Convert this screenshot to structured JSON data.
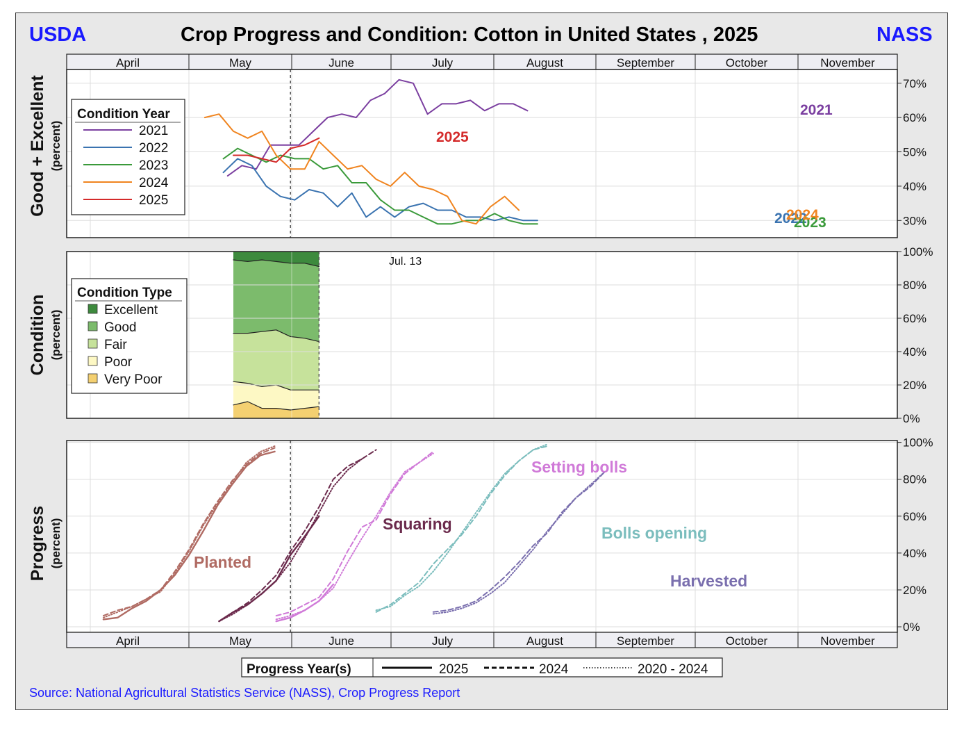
{
  "header": {
    "left_logo": "USDA",
    "title": "Crop Progress and Condition: Cotton in United States , 2025",
    "right_logo": "NASS"
  },
  "source": "Source: National Agricultural Statistics Service (NASS), Crop Progress Report",
  "months": [
    "April",
    "May",
    "June",
    "July",
    "August",
    "September",
    "October",
    "November"
  ],
  "colors": {
    "brand": "#1a1aff",
    "y2021": "#7b3fa0",
    "y2022": "#3a73b0",
    "y2023": "#3a9a3a",
    "y2024": "#f0841f",
    "y2025": "#d42a2a",
    "excellent": "#3d8a3d",
    "good": "#7cbb6c",
    "fair": "#c6e29b",
    "poor": "#fdf8c4",
    "very_poor": "#f4d071",
    "planted": "#b06b63",
    "squaring": "#6b2a4c",
    "setting_bolls": "#d07ad8",
    "bolls_opening": "#7bbdbd",
    "harvested": "#7a6fae"
  },
  "chart_data": [
    {
      "type": "line",
      "title": "Good + Excellent",
      "ylabel": "Good + Excellent",
      "ylabel_sub": "(percent)",
      "ylim": [
        25,
        74
      ],
      "yticks": [
        "30%",
        "40%",
        "50%",
        "60%",
        "70%"
      ],
      "ytick_values": [
        30,
        40,
        50,
        60,
        70
      ],
      "x_unit": "weeks since April 1",
      "current_week_marker": 14.7,
      "legend_title": "Condition Year",
      "series": [
        {
          "name": "2021",
          "color_key": "y2021",
          "end_label": "2021",
          "x": [
            10.3,
            11.3,
            12.3,
            13.3,
            14.3,
            15.3,
            16.3,
            17.3,
            18.3,
            19.3,
            20.3,
            21.3,
            22.3,
            23.3,
            24.3,
            25.3,
            26.3,
            27.3,
            28.3,
            29.3,
            30.3,
            31.3
          ],
          "values": [
            43,
            46,
            45,
            52,
            52,
            52,
            56,
            60,
            61,
            60,
            65,
            67,
            71,
            70,
            61,
            64,
            64,
            65,
            62,
            64,
            64,
            62
          ]
        },
        {
          "name": "2022",
          "color_key": "y2022",
          "end_label": "2022",
          "x": [
            10.0,
            11.0,
            12.0,
            13.0,
            14.0,
            15.0,
            16.0,
            17.0,
            18.0,
            19.0,
            20.0,
            21.0,
            22.0,
            23.0,
            24.0,
            25.0,
            26.0,
            27.0,
            28.0,
            29.0,
            30.0,
            31.0,
            32.0
          ],
          "values": [
            44,
            48,
            46,
            40,
            37,
            36,
            39,
            38,
            34,
            38,
            31,
            34,
            31,
            34,
            35,
            33,
            33,
            31,
            31,
            30,
            31,
            30,
            30
          ]
        },
        {
          "name": "2023",
          "color_key": "y2023",
          "end_label": "2023",
          "x": [
            10.0,
            11.0,
            12.0,
            13.0,
            14.0,
            15.0,
            16.0,
            17.0,
            18.0,
            19.0,
            20.0,
            21.0,
            22.0,
            23.0,
            24.0,
            25.0,
            26.0,
            27.0,
            28.0,
            29.0,
            30.0,
            31.0,
            32.0
          ],
          "values": [
            48,
            51,
            49,
            47,
            49,
            48,
            48,
            45,
            46,
            41,
            41,
            36,
            33,
            33,
            31,
            29,
            29,
            30,
            30,
            32,
            30,
            29,
            29
          ]
        },
        {
          "name": "2024",
          "color_key": "y2024",
          "end_label": "2024",
          "x": [
            8.7,
            9.7,
            10.7,
            11.7,
            12.7,
            13.7,
            14.7,
            15.7,
            16.7,
            17.7,
            18.7,
            19.7,
            20.7,
            21.7,
            22.7,
            23.7,
            24.7,
            25.7,
            26.7,
            27.7,
            28.7,
            29.7,
            30.7,
            31.7
          ],
          "values": [
            60,
            61,
            56,
            54,
            56,
            49,
            45,
            45,
            53,
            49,
            45,
            46,
            42,
            40,
            44,
            40,
            39,
            37,
            30,
            29,
            34,
            37,
            33,
            null
          ]
        },
        {
          "name": "2025",
          "color_key": "y2025",
          "end_label": "2025",
          "x": [
            10.7,
            11.7,
            12.7,
            13.7,
            14.7,
            15.7,
            16.7,
            17.7
          ],
          "values": [
            49,
            49,
            48,
            47,
            51,
            52,
            54,
            null
          ]
        }
      ]
    },
    {
      "type": "area",
      "title": "Condition",
      "ylabel": "Condition",
      "ylabel_sub": "(percent)",
      "ylim": [
        0,
        100
      ],
      "yticks": [
        "0%",
        "20%",
        "40%",
        "60%",
        "80%",
        "100%"
      ],
      "ytick_values": [
        0,
        20,
        40,
        60,
        80,
        100
      ],
      "annotation": "Jul. 13",
      "legend_title": "Condition Type",
      "categories": [
        "Excellent",
        "Good",
        "Fair",
        "Poor",
        "Very Poor"
      ],
      "x": [
        10.7,
        11.7,
        12.7,
        13.7,
        14.7,
        15.7,
        16.7
      ],
      "stacks": {
        "very_poor_top": [
          8,
          10,
          6,
          6,
          5,
          6,
          7
        ],
        "poor_top": [
          22,
          21,
          19,
          20,
          17,
          17,
          17
        ],
        "fair_top": [
          51,
          51,
          52,
          53,
          49,
          48,
          46
        ],
        "good_top": [
          95,
          94,
          95,
          94,
          93,
          93,
          91
        ]
      }
    },
    {
      "type": "line",
      "title": "Progress",
      "ylabel": "Progress",
      "ylabel_sub": "(percent)",
      "ylim": [
        -3,
        101
      ],
      "yticks": [
        "0%",
        "20%",
        "40%",
        "60%",
        "80%",
        "100%"
      ],
      "ytick_values": [
        0,
        20,
        40,
        60,
        80,
        100
      ],
      "legend_title": "Progress Year(s)",
      "legend_items": [
        "2025",
        "2024",
        "2020 - 2024"
      ],
      "stages": [
        {
          "name": "Planted",
          "color_key": "planted",
          "s2025": {
            "x": [
              1.6,
              2.6,
              3.6,
              4.6,
              5.6,
              6.6,
              7.6,
              8.6,
              9.6,
              10.6,
              11.6,
              12.6,
              13.6,
              14.6
            ],
            "y": [
              4,
              5,
              10,
              14,
              20,
              28,
              39,
              52,
              66,
              77,
              87,
              93,
              95,
              null
            ]
          },
          "s2024": {
            "x": [
              1.6,
              2.6,
              3.6,
              4.6,
              5.6,
              6.6,
              7.6,
              8.6,
              9.6,
              10.6,
              11.6,
              12.6,
              13.6
            ],
            "y": [
              6,
              9,
              11,
              15,
              20,
              30,
              42,
              56,
              68,
              79,
              88,
              94,
              97
            ]
          },
          "savg": {
            "x": [
              1.6,
              2.6,
              3.6,
              4.6,
              5.6,
              6.6,
              7.6,
              8.6,
              9.6,
              10.6,
              11.6,
              12.6,
              13.6
            ],
            "y": [
              5,
              8,
              11,
              15,
              19,
              29,
              41,
              55,
              67,
              78,
              89,
              95,
              98
            ]
          }
        },
        {
          "name": "Squaring",
          "color_key": "squaring",
          "s2025": {
            "x": [
              9.7,
              10.7,
              11.7,
              12.7,
              13.7,
              14.7,
              15.7,
              16.7
            ],
            "y": [
              3,
              8,
              12,
              18,
              25,
              39,
              49,
              60
            ]
          },
          "s2024": {
            "x": [
              9.7,
              10.7,
              11.7,
              12.7,
              13.7,
              14.7,
              15.7,
              16.7,
              17.7,
              18.7,
              19.7,
              20.7
            ],
            "y": [
              3,
              8,
              13,
              20,
              28,
              41,
              52,
              65,
              80,
              87,
              91,
              96
            ]
          },
          "savg": {
            "x": [
              9.7,
              10.7,
              11.7,
              12.7,
              13.7,
              14.7,
              15.7,
              16.7,
              17.7,
              18.7,
              19.7
            ],
            "y": [
              3,
              7,
              12,
              18,
              25,
              35,
              48,
              62,
              76,
              85,
              91
            ]
          }
        },
        {
          "name": "Setting bolls",
          "color_key": "setting_bolls",
          "s2025": {
            "x": [
              13.7,
              14.7,
              15.7,
              16.7,
              17.7
            ],
            "y": [
              3,
              5,
              9,
              14,
              23
            ]
          },
          "s2024": {
            "x": [
              13.7,
              14.7,
              15.7,
              16.7,
              17.7,
              18.7,
              19.7,
              20.7,
              21.7,
              22.7,
              23.7,
              24.7
            ],
            "y": [
              6,
              8,
              12,
              16,
              26,
              41,
              54,
              58,
              72,
              83,
              89,
              95
            ]
          },
          "savg": {
            "x": [
              13.7,
              14.7,
              15.7,
              16.7,
              17.7,
              18.7,
              19.7,
              20.7,
              21.7,
              22.7,
              23.7,
              24.7
            ],
            "y": [
              4,
              6,
              9,
              14,
              21,
              35,
              48,
              60,
              73,
              84,
              89,
              94
            ]
          }
        },
        {
          "name": "Bolls opening",
          "color_key": "bolls_opening",
          "s2024": {
            "x": [
              20.7,
              21.7,
              22.7,
              23.7,
              24.7,
              25.7,
              26.7,
              27.7,
              28.7,
              29.7,
              30.7,
              31.7,
              32.7
            ],
            "y": [
              8,
              12,
              18,
              24,
              34,
              42,
              50,
              60,
              72,
              82,
              90,
              96,
              98
            ]
          },
          "savg": {
            "x": [
              20.7,
              21.7,
              22.7,
              23.7,
              24.7,
              25.7,
              26.7,
              27.7,
              28.7,
              29.7,
              30.7,
              31.7,
              32.7
            ],
            "y": [
              9,
              11,
              17,
              22,
              30,
              40,
              51,
              62,
              73,
              83,
              90,
              96,
              99
            ]
          }
        },
        {
          "name": "Harvested",
          "color_key": "harvested",
          "s2024": {
            "x": [
              24.7,
              25.7,
              26.7,
              27.7,
              28.7,
              29.7,
              30.7,
              31.7,
              32.7,
              33.7,
              34.7,
              35.7,
              36.7
            ],
            "y": [
              8,
              9,
              11,
              14,
              20,
              27,
              35,
              44,
              51,
              62,
              70,
              76,
              84
            ]
          },
          "savg": {
            "x": [
              24.7,
              25.7,
              26.7,
              27.7,
              28.7,
              29.7,
              30.7,
              31.7,
              32.7,
              33.7,
              34.7,
              35.7,
              36.7
            ],
            "y": [
              7,
              8,
              10,
              13,
              18,
              24,
              33,
              42,
              52,
              61,
              70,
              77,
              84
            ]
          }
        }
      ]
    }
  ]
}
